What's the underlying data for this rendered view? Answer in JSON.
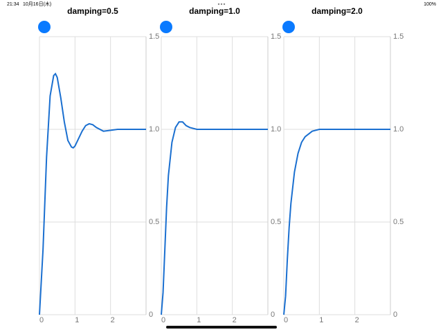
{
  "status_bar": {
    "time": "21:34",
    "date": "10月16日(木)",
    "battery": "100%"
  },
  "chart_data": [
    {
      "type": "line",
      "title": "damping=0.5",
      "x": [
        0,
        0.1,
        0.2,
        0.3,
        0.4,
        0.45,
        0.5,
        0.6,
        0.7,
        0.8,
        0.9,
        0.95,
        1.0,
        1.1,
        1.2,
        1.3,
        1.4,
        1.5,
        1.6,
        1.8,
        2.0,
        2.2,
        2.5,
        3.0
      ],
      "series": [
        {
          "color": "#1a6fd0",
          "values": [
            0,
            0.35,
            0.85,
            1.18,
            1.29,
            1.3,
            1.28,
            1.17,
            1.04,
            0.94,
            0.905,
            0.9,
            0.91,
            0.95,
            0.99,
            1.02,
            1.03,
            1.025,
            1.01,
            0.99,
            0.995,
            1.0,
            1.0,
            1.0
          ]
        }
      ],
      "xlim": [
        0,
        3
      ],
      "ylim": [
        0,
        1.5
      ],
      "xticks": [
        0,
        1,
        2
      ],
      "yticks": [
        0,
        0.5,
        {
          "value": 1,
          "label": "1.0"
        },
        1.5
      ],
      "grid": true
    },
    {
      "type": "line",
      "title": "damping=1.0",
      "x": [
        0,
        0.05,
        0.1,
        0.15,
        0.2,
        0.3,
        0.4,
        0.5,
        0.6,
        0.7,
        0.8,
        1.0,
        1.2,
        1.5,
        2.0,
        3.0
      ],
      "series": [
        {
          "color": "#1a6fd0",
          "values": [
            0,
            0.12,
            0.35,
            0.58,
            0.75,
            0.93,
            1.01,
            1.04,
            1.04,
            1.02,
            1.01,
            1.0,
            1.0,
            1.0,
            1.0,
            1.0
          ]
        }
      ],
      "xlim": [
        0,
        3
      ],
      "ylim": [
        0,
        1.5
      ],
      "xticks": [
        0,
        1,
        2
      ],
      "yticks": [
        0,
        0.5,
        {
          "value": 1,
          "label": "1.0"
        },
        1.5
      ],
      "grid": true
    },
    {
      "type": "line",
      "title": "damping=2.0",
      "x": [
        0,
        0.05,
        0.1,
        0.15,
        0.2,
        0.3,
        0.4,
        0.5,
        0.6,
        0.8,
        1.0,
        1.5,
        2.0,
        3.0
      ],
      "series": [
        {
          "color": "#1a6fd0",
          "values": [
            0,
            0.1,
            0.3,
            0.47,
            0.6,
            0.77,
            0.87,
            0.93,
            0.96,
            0.99,
            1.0,
            1.0,
            1.0,
            1.0
          ]
        }
      ],
      "xlim": [
        0,
        3
      ],
      "ylim": [
        0,
        1.5
      ],
      "xticks": [
        0,
        1,
        2
      ],
      "yticks": [
        0,
        0.5,
        {
          "value": 1,
          "label": "1.0"
        },
        1.5
      ],
      "grid": true
    }
  ]
}
